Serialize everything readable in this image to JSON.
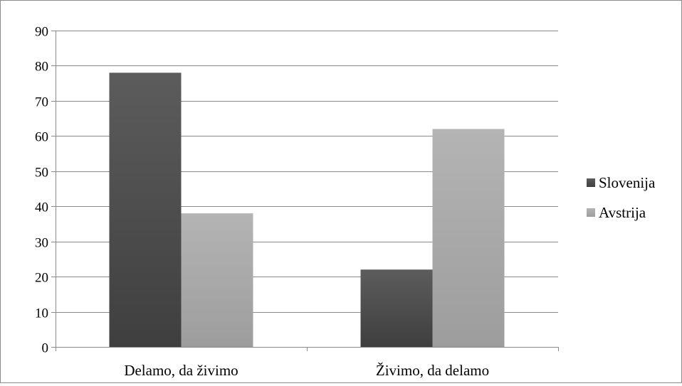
{
  "chart_data": {
    "type": "bar",
    "title": "",
    "xlabel": "",
    "ylabel": "",
    "categories": [
      "Delamo, da živimo",
      "Živimo, da delamo"
    ],
    "series": [
      {
        "name": "Slovenija",
        "values": [
          78,
          22
        ],
        "color": "#4d4d4d"
      },
      {
        "name": "Avstrija",
        "values": [
          38,
          62
        ],
        "color": "#a9a9a9"
      }
    ],
    "ylim": [
      0,
      90
    ],
    "yticks": [
      0,
      10,
      20,
      30,
      40,
      50,
      60,
      70,
      80,
      90
    ],
    "grid": true,
    "legend_position": "right"
  }
}
